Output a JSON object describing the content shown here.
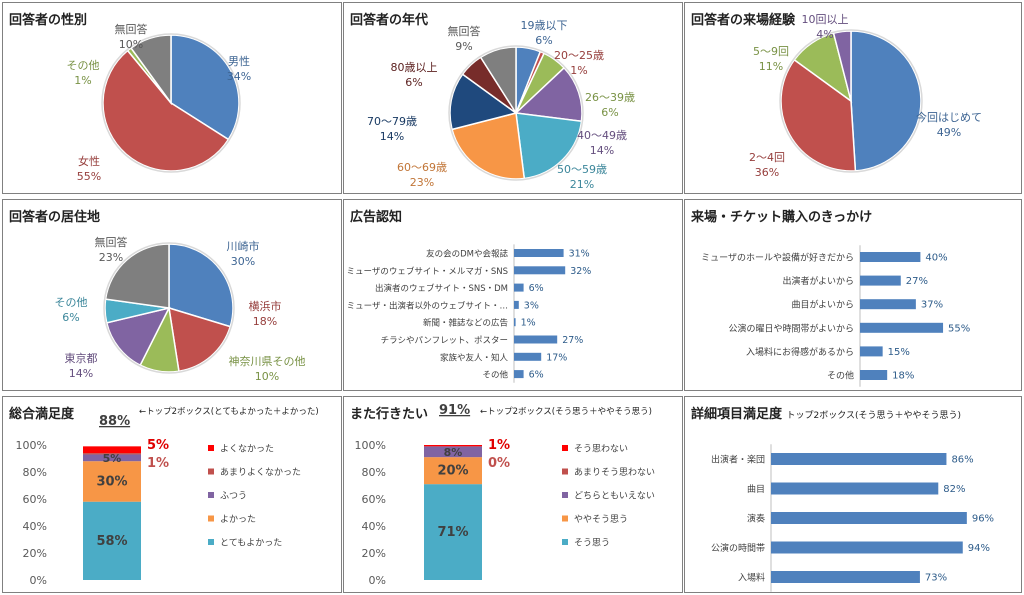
{
  "colors": {
    "blue": "#4f81bd",
    "red": "#c0504d",
    "green": "#9bbb59",
    "purple": "#8064a2",
    "aqua": "#4bacc6",
    "orange": "#f79646",
    "navy": "#1f497d",
    "darkred": "#772c2a",
    "gray": "#7f7f7f",
    "bar": "#4f81bd",
    "neg1": "#ff0000",
    "neg2": "#c0504d",
    "mid": "#8064a2"
  },
  "charts": {
    "gender": {
      "title": "回答者の性別",
      "chart_data": {
        "type": "pie",
        "slices": [
          {
            "name": "男性",
            "value": 34,
            "label": "34%",
            "color": "blue"
          },
          {
            "name": "女性",
            "value": 55,
            "label": "55%",
            "color": "red"
          },
          {
            "name": "その他",
            "value": 1,
            "label": "1%",
            "color": "green"
          },
          {
            "name": "無回答",
            "value": 10,
            "label": "10%",
            "color": "gray"
          }
        ]
      }
    },
    "age": {
      "title": "回答者の年代",
      "chart_data": {
        "type": "pie",
        "slices": [
          {
            "name": "19歳以下",
            "value": 6,
            "label": "6%",
            "color": "blue"
          },
          {
            "name": "20～25歳",
            "value": 1,
            "label": "1%",
            "color": "red"
          },
          {
            "name": "26～39歳",
            "value": 6,
            "label": "6%",
            "color": "green"
          },
          {
            "name": "40～49歳",
            "value": 14,
            "label": "14%",
            "color": "purple"
          },
          {
            "name": "50～59歳",
            "value": 21,
            "label": "21%",
            "color": "aqua"
          },
          {
            "name": "60～69歳",
            "value": 23,
            "label": "23%",
            "color": "orange"
          },
          {
            "name": "70～79歳",
            "value": 14,
            "label": "14%",
            "color": "navy"
          },
          {
            "name": "80歳以上",
            "value": 6,
            "label": "6%",
            "color": "darkred"
          },
          {
            "name": "無回答",
            "value": 9,
            "label": "9%",
            "color": "gray"
          }
        ]
      }
    },
    "visits": {
      "title": "回答者の来場経験",
      "chart_data": {
        "type": "pie",
        "slices": [
          {
            "name": "今回はじめて",
            "value": 49,
            "label": "49%",
            "color": "blue"
          },
          {
            "name": "2～4回",
            "value": 36,
            "label": "36%",
            "color": "red"
          },
          {
            "name": "5～9回",
            "value": 11,
            "label": "11%",
            "color": "green"
          },
          {
            "name": "10回以上",
            "value": 4,
            "label": "4%",
            "color": "purple"
          }
        ]
      }
    },
    "residence": {
      "title": "回答者の居住地",
      "chart_data": {
        "type": "pie",
        "slices": [
          {
            "name": "川崎市",
            "value": 30,
            "label": "30%",
            "color": "blue"
          },
          {
            "name": "横浜市",
            "value": 18,
            "label": "18%",
            "color": "red"
          },
          {
            "name": "神奈川県その他",
            "value": 10,
            "label": "10%",
            "color": "green"
          },
          {
            "name": "東京都",
            "value": 14,
            "label": "14%",
            "color": "purple"
          },
          {
            "name": "その他",
            "value": 6,
            "label": "6%",
            "color": "aqua"
          },
          {
            "name": "無回答",
            "value": 23,
            "label": "23%",
            "color": "gray"
          }
        ]
      }
    },
    "ads": {
      "title": "広告認知",
      "chart_data": {
        "type": "bar",
        "orientation": "horizontal",
        "xlim": [
          0,
          100
        ],
        "categories": [
          "友の会のDMや会報誌",
          "ミューザのウェブサイト・メルマガ・SNS",
          "出演者のウェブサイト・SNS・DM",
          "ミューザ・出演者以外のウェブサイト・…",
          "新聞・雑誌などの広告",
          "チラシやパンフレット、ポスター",
          "家族や友人・知人",
          "その他"
        ],
        "values": [
          31,
          32,
          6,
          3,
          1,
          27,
          17,
          6
        ],
        "labels": [
          "31%",
          "32%",
          "6%",
          "3%",
          "1%",
          "27%",
          "17%",
          "6%"
        ]
      }
    },
    "trigger": {
      "title": "来場・チケット購入のきっかけ",
      "chart_data": {
        "type": "bar",
        "orientation": "horizontal",
        "xlim": [
          0,
          100
        ],
        "categories": [
          "ミューザのホールや設備が好きだから",
          "出演者がよいから",
          "曲目がよいから",
          "公演の曜日や時間帯がよいから",
          "入場料にお得感があるから",
          "その他"
        ],
        "values": [
          40,
          27,
          37,
          55,
          15,
          18
        ],
        "labels": [
          "40%",
          "27%",
          "37%",
          "55%",
          "15%",
          "18%"
        ]
      }
    },
    "satisfaction": {
      "title": "総合満足度",
      "top2": "88%",
      "note": "←トップ2ボックス(とてもよかった＋よかった)",
      "chart_data": {
        "type": "bar",
        "stacked": true,
        "ylim": [
          0,
          100
        ],
        "yticks": [
          "0%",
          "20%",
          "40%",
          "60%",
          "80%",
          "100%"
        ],
        "series": [
          {
            "name": "とてもよかった",
            "value": 58,
            "label": "58%",
            "color": "aqua"
          },
          {
            "name": "よかった",
            "value": 30,
            "label": "30%",
            "color": "orange"
          },
          {
            "name": "ふつう",
            "value": 5,
            "label": "5%",
            "color": "mid"
          },
          {
            "name": "あまりよくなかった",
            "value": 1,
            "label": "1%",
            "color": "neg2"
          },
          {
            "name": "よくなかった",
            "value": 5,
            "label": "5%",
            "color": "neg1"
          }
        ]
      }
    },
    "revisit": {
      "title": "また行きたい",
      "top2": "91%",
      "note": "←トップ2ボックス(そう思う＋ややそう思う)",
      "chart_data": {
        "type": "bar",
        "stacked": true,
        "ylim": [
          0,
          100
        ],
        "yticks": [
          "0%",
          "20%",
          "40%",
          "60%",
          "80%",
          "100%"
        ],
        "series": [
          {
            "name": "そう思う",
            "value": 71,
            "label": "71%",
            "color": "aqua"
          },
          {
            "name": "ややそう思う",
            "value": 20,
            "label": "20%",
            "color": "orange"
          },
          {
            "name": "どちらともいえない",
            "value": 8,
            "label": "8%",
            "color": "mid"
          },
          {
            "name": "あまりそう思わない",
            "value": 0,
            "label": "0%",
            "color": "neg2"
          },
          {
            "name": "そう思わない",
            "value": 1,
            "label": "1%",
            "color": "neg1"
          }
        ]
      }
    },
    "detail": {
      "title": "詳細項目満足度",
      "note": "トップ2ボックス(そう思う＋ややそう思う)",
      "chart_data": {
        "type": "bar",
        "orientation": "horizontal",
        "xlim": [
          0,
          100
        ],
        "categories": [
          "出演者・楽団",
          "曲目",
          "演奏",
          "公演の時間帯",
          "入場料"
        ],
        "values": [
          86,
          82,
          96,
          94,
          73
        ],
        "labels": [
          "86%",
          "82%",
          "96%",
          "94%",
          "73%"
        ]
      }
    }
  }
}
